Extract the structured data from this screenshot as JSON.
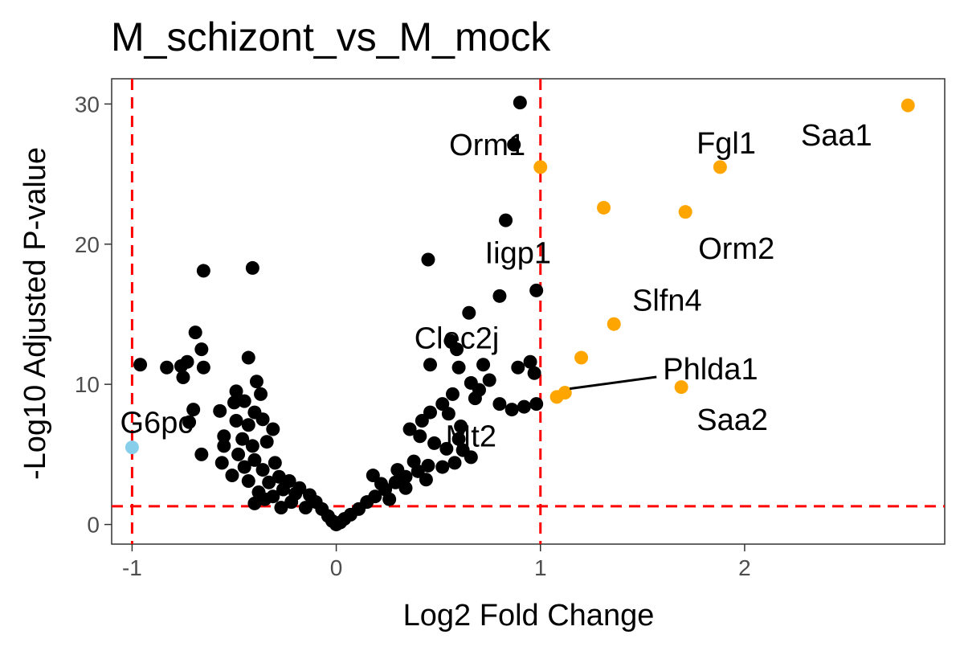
{
  "chart_data": {
    "type": "scatter",
    "title": "M_schizont_vs_M_mock",
    "xlabel": "Log2 Fold Change",
    "ylabel": "-Log10 Adjusted P-value",
    "xlim": [
      -1.1,
      2.98
    ],
    "ylim": [
      -1.4,
      31.8
    ],
    "x_ticks": [
      -1,
      0,
      1,
      2
    ],
    "y_ticks": [
      0,
      10,
      20,
      30
    ],
    "thresholds": {
      "log2fc": [
        -1,
        1
      ],
      "neg_log10_padj": 1.3
    },
    "threshold_color": "#ff0000",
    "grid": false,
    "legend": "none",
    "colors": {
      "not_significant": "#000000",
      "up": "#ffa500",
      "down": "#87ceeb"
    },
    "points_up": [
      {
        "x": 2.8,
        "y": 29.9
      },
      {
        "x": 1.88,
        "y": 25.5
      },
      {
        "x": 1.0,
        "y": 25.5
      },
      {
        "x": 1.31,
        "y": 22.6
      },
      {
        "x": 1.71,
        "y": 22.3
      },
      {
        "x": 1.36,
        "y": 14.3
      },
      {
        "x": 1.2,
        "y": 11.9
      },
      {
        "x": 1.12,
        "y": 9.4
      },
      {
        "x": 1.08,
        "y": 9.1
      },
      {
        "x": 1.69,
        "y": 9.8
      }
    ],
    "points_down": [
      {
        "x": -1.0,
        "y": 5.5
      }
    ],
    "points_ns": [
      {
        "x": 0.9,
        "y": 30.1
      },
      {
        "x": 0.87,
        "y": 27.1
      },
      {
        "x": 0.83,
        "y": 21.7
      },
      {
        "x": 0.45,
        "y": 18.9
      },
      {
        "x": 0.98,
        "y": 16.7
      },
      {
        "x": 0.8,
        "y": 16.3
      },
      {
        "x": 0.65,
        "y": 15.1
      },
      {
        "x": 0.56,
        "y": 13.1
      },
      {
        "x": 0.59,
        "y": 12.5
      },
      {
        "x": 0.46,
        "y": 11.4
      },
      {
        "x": 0.6,
        "y": 11.2
      },
      {
        "x": 0.72,
        "y": 11.4
      },
      {
        "x": 0.89,
        "y": 11.2
      },
      {
        "x": 0.95,
        "y": 11.6
      },
      {
        "x": 0.97,
        "y": 10.8
      },
      {
        "x": 0.66,
        "y": 10.1
      },
      {
        "x": 0.75,
        "y": 10.3
      },
      {
        "x": 0.7,
        "y": 9.6
      },
      {
        "x": 0.68,
        "y": 9.0
      },
      {
        "x": 0.57,
        "y": 9.3
      },
      {
        "x": 0.52,
        "y": 8.6
      },
      {
        "x": 0.46,
        "y": 8.0
      },
      {
        "x": 0.42,
        "y": 7.4
      },
      {
        "x": 0.36,
        "y": 6.8
      },
      {
        "x": 0.41,
        "y": 6.3
      },
      {
        "x": 0.55,
        "y": 7.9
      },
      {
        "x": 0.61,
        "y": 7.0
      },
      {
        "x": 0.6,
        "y": 6.1
      },
      {
        "x": 0.54,
        "y": 5.4
      },
      {
        "x": 0.62,
        "y": 5.3
      },
      {
        "x": 0.66,
        "y": 4.8
      },
      {
        "x": 0.58,
        "y": 4.4
      },
      {
        "x": 0.52,
        "y": 4.1
      },
      {
        "x": 0.45,
        "y": 4.2
      },
      {
        "x": 0.4,
        "y": 3.8
      },
      {
        "x": 0.34,
        "y": 3.4
      },
      {
        "x": 0.29,
        "y": 3.0
      },
      {
        "x": 0.24,
        "y": 2.5
      },
      {
        "x": 0.19,
        "y": 2.0
      },
      {
        "x": 0.15,
        "y": 1.6
      },
      {
        "x": 0.11,
        "y": 1.1
      },
      {
        "x": 0.07,
        "y": 0.7
      },
      {
        "x": 0.04,
        "y": 0.4
      },
      {
        "x": 0.02,
        "y": 0.15
      },
      {
        "x": 0.0,
        "y": 0.0
      },
      {
        "x": 0.3,
        "y": 3.9
      },
      {
        "x": 0.34,
        "y": 2.6
      },
      {
        "x": 0.22,
        "y": 2.9
      },
      {
        "x": 0.26,
        "y": 1.8
      },
      {
        "x": 0.18,
        "y": 3.5
      },
      {
        "x": 0.48,
        "y": 5.8
      },
      {
        "x": 0.38,
        "y": 4.5
      },
      {
        "x": 0.44,
        "y": 3.2
      },
      {
        "x": 0.92,
        "y": 8.4
      },
      {
        "x": 0.8,
        "y": 8.6
      },
      {
        "x": 0.86,
        "y": 8.2
      },
      {
        "x": 0.98,
        "y": 8.6
      },
      {
        "x": -0.65,
        "y": 18.1
      },
      {
        "x": -0.41,
        "y": 18.3
      },
      {
        "x": -0.69,
        "y": 13.7
      },
      {
        "x": -0.66,
        "y": 12.5
      },
      {
        "x": -0.43,
        "y": 11.9
      },
      {
        "x": -0.96,
        "y": 11.4
      },
      {
        "x": -0.83,
        "y": 11.2
      },
      {
        "x": -0.73,
        "y": 11.6
      },
      {
        "x": -0.76,
        "y": 11.3
      },
      {
        "x": -0.75,
        "y": 10.5
      },
      {
        "x": -0.65,
        "y": 11.2
      },
      {
        "x": -0.39,
        "y": 10.2
      },
      {
        "x": -0.49,
        "y": 9.5
      },
      {
        "x": -0.37,
        "y": 9.3
      },
      {
        "x": -0.45,
        "y": 8.8
      },
      {
        "x": -0.5,
        "y": 8.7
      },
      {
        "x": -0.4,
        "y": 8.0
      },
      {
        "x": -0.57,
        "y": 8.1
      },
      {
        "x": -0.7,
        "y": 8.2
      },
      {
        "x": -0.72,
        "y": 7.3
      },
      {
        "x": -0.49,
        "y": 7.4
      },
      {
        "x": -0.43,
        "y": 7.1
      },
      {
        "x": -0.36,
        "y": 7.5
      },
      {
        "x": -0.31,
        "y": 6.8
      },
      {
        "x": -0.55,
        "y": 6.3
      },
      {
        "x": -0.46,
        "y": 6.1
      },
      {
        "x": -0.41,
        "y": 5.6
      },
      {
        "x": -0.34,
        "y": 5.9
      },
      {
        "x": -0.55,
        "y": 5.6
      },
      {
        "x": -0.66,
        "y": 5.0
      },
      {
        "x": -0.48,
        "y": 5.0
      },
      {
        "x": -0.4,
        "y": 4.6
      },
      {
        "x": -0.3,
        "y": 4.4
      },
      {
        "x": -0.56,
        "y": 4.4
      },
      {
        "x": -0.45,
        "y": 4.1
      },
      {
        "x": -0.36,
        "y": 3.9
      },
      {
        "x": -0.28,
        "y": 3.4
      },
      {
        "x": -0.23,
        "y": 3.1
      },
      {
        "x": -0.18,
        "y": 2.6
      },
      {
        "x": -0.13,
        "y": 2.1
      },
      {
        "x": -0.1,
        "y": 1.6
      },
      {
        "x": -0.07,
        "y": 1.1
      },
      {
        "x": -0.04,
        "y": 0.6
      },
      {
        "x": -0.02,
        "y": 0.25
      },
      {
        "x": -0.33,
        "y": 3.0
      },
      {
        "x": -0.26,
        "y": 2.5
      },
      {
        "x": -0.38,
        "y": 2.3
      },
      {
        "x": -0.43,
        "y": 3.1
      },
      {
        "x": -0.31,
        "y": 2.0
      },
      {
        "x": -0.22,
        "y": 1.6
      },
      {
        "x": -0.35,
        "y": 1.8
      },
      {
        "x": -0.51,
        "y": 3.5
      },
      {
        "x": -0.2,
        "y": 2.2
      },
      {
        "x": -0.15,
        "y": 1.2
      },
      {
        "x": -0.4,
        "y": 1.5
      },
      {
        "x": -0.27,
        "y": 1.2
      }
    ],
    "labels": [
      {
        "text": "Saa1",
        "x": 2.8,
        "y": 29.9,
        "dx": -0.35,
        "dy": -2.1
      },
      {
        "text": "Fgl1",
        "x": 1.88,
        "y": 25.5,
        "dx": 0.03,
        "dy": 1.7
      },
      {
        "text": "Orm1",
        "x": 0.87,
        "y": 27.1,
        "dx": -0.13,
        "dy": 0.0
      },
      {
        "text": "Iigp1",
        "x": 0.83,
        "y": 21.7,
        "dx": 0.06,
        "dy": -2.3
      },
      {
        "text": "Orm2",
        "x": 1.71,
        "y": 22.3,
        "dx": 0.25,
        "dy": -2.6
      },
      {
        "text": "Slfn4",
        "x": 1.36,
        "y": 14.3,
        "dx": 0.26,
        "dy": 1.7
      },
      {
        "text": "Clec2j",
        "x": 0.65,
        "y": 15.1,
        "dx": -0.06,
        "dy": -1.8
      },
      {
        "text": "Phlda1",
        "x": 1.12,
        "y": 9.4,
        "dx": 0.48,
        "dy": 1.7,
        "connector": true
      },
      {
        "text": "Saa2",
        "x": 1.69,
        "y": 9.8,
        "dx": 0.25,
        "dy": -2.3
      },
      {
        "text": "G6pc",
        "x": -1.0,
        "y": 5.5,
        "dx": 0.12,
        "dy": 1.8
      },
      {
        "text": "Mt2",
        "x": 0.66,
        "y": 4.8,
        "dx": 0.0,
        "dy": 1.5
      }
    ]
  }
}
